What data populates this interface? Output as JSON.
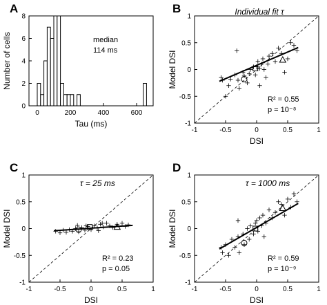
{
  "chart_data": [
    {
      "panel": "A",
      "type": "histogram",
      "xlabel": "Tau (ms)",
      "ylabel": "Number of cells",
      "xlim": [
        -50,
        700
      ],
      "ylim": [
        0,
        8
      ],
      "xticks": [
        0,
        200,
        400,
        600
      ],
      "yticks": [
        0,
        2,
        4,
        6,
        8
      ],
      "bin_width": 20,
      "bins": [
        {
          "x0": 0,
          "count": 2
        },
        {
          "x0": 20,
          "count": 1
        },
        {
          "x0": 40,
          "count": 4
        },
        {
          "x0": 60,
          "count": 7
        },
        {
          "x0": 80,
          "count": 6
        },
        {
          "x0": 100,
          "count": 8
        },
        {
          "x0": 120,
          "count": 8
        },
        {
          "x0": 140,
          "count": 2
        },
        {
          "x0": 160,
          "count": 1
        },
        {
          "x0": 180,
          "count": 1
        },
        {
          "x0": 200,
          "count": 1
        },
        {
          "x0": 240,
          "count": 1
        },
        {
          "x0": 640,
          "count": 2
        }
      ],
      "annotation_line1": "median",
      "annotation_line2": "114 ms"
    },
    {
      "panel": "B",
      "type": "scatter",
      "title": "Individual fit τ",
      "xlabel": "DSI",
      "ylabel": "Model DSI",
      "xlim": [
        -1,
        1
      ],
      "ylim": [
        -1,
        1
      ],
      "xticks": [
        -1,
        -0.5,
        0,
        0.5,
        1
      ],
      "yticks": [
        -1,
        -0.5,
        0,
        0.5,
        1
      ],
      "stat1_text": "R² = 0.55",
      "stat2_text": "p = 10⁻⁸",
      "fit_line": [
        [
          -0.6,
          -0.22
        ],
        [
          0.67,
          0.41
        ]
      ],
      "points": [
        [
          -0.57,
          -0.15
        ],
        [
          -0.55,
          -0.2
        ],
        [
          -0.5,
          -0.5
        ],
        [
          -0.45,
          -0.3
        ],
        [
          -0.42,
          -0.18
        ],
        [
          -0.35,
          -0.1
        ],
        [
          -0.3,
          -0.2
        ],
        [
          -0.28,
          -0.35
        ],
        [
          -0.22,
          -0.05
        ],
        [
          -0.2,
          -0.12
        ],
        [
          -0.15,
          -0.25
        ],
        [
          -0.12,
          -0.08
        ],
        [
          -0.1,
          0.0
        ],
        [
          -0.05,
          0.05
        ],
        [
          -0.02,
          -0.1
        ],
        [
          0.0,
          0.05
        ],
        [
          0.02,
          0.15
        ],
        [
          0.05,
          0.02
        ],
        [
          0.08,
          0.1
        ],
        [
          0.1,
          0.2
        ],
        [
          0.12,
          0.0
        ],
        [
          0.15,
          -0.15
        ],
        [
          0.18,
          0.1
        ],
        [
          0.2,
          0.25
        ],
        [
          0.25,
          0.3
        ],
        [
          0.3,
          0.15
        ],
        [
          0.35,
          0.4
        ],
        [
          0.4,
          0.3
        ],
        [
          0.45,
          -0.05
        ],
        [
          0.5,
          0.2
        ],
        [
          0.55,
          0.5
        ],
        [
          0.6,
          0.45
        ],
        [
          0.65,
          0.35
        ],
        [
          -0.32,
          0.35
        ],
        [
          0.05,
          -0.3
        ]
      ],
      "circle": [
        -0.2,
        -0.18
      ],
      "square": [
        -0.02,
        0.02
      ],
      "triangle": [
        0.42,
        0.18
      ]
    },
    {
      "panel": "C",
      "type": "scatter",
      "title": "τ = 25 ms",
      "xlabel": "DSI",
      "ylabel": "Model DSI",
      "xlim": [
        -1,
        1
      ],
      "ylim": [
        -1,
        1
      ],
      "xticks": [
        -1,
        -0.5,
        0,
        0.5,
        1
      ],
      "yticks": [
        -1,
        -0.5,
        0,
        0.5,
        1
      ],
      "stat1_text": "R² = 0.23",
      "stat2_text": "p = 0.05",
      "fit_line": [
        [
          -0.6,
          -0.04
        ],
        [
          0.67,
          0.06
        ]
      ],
      "points": [
        [
          -0.57,
          -0.05
        ],
        [
          -0.5,
          -0.08
        ],
        [
          -0.45,
          -0.03
        ],
        [
          -0.4,
          -0.07
        ],
        [
          -0.35,
          -0.02
        ],
        [
          -0.3,
          -0.05
        ],
        [
          -0.25,
          0.0
        ],
        [
          -0.2,
          -0.06
        ],
        [
          -0.15,
          0.02
        ],
        [
          -0.1,
          -0.03
        ],
        [
          -0.05,
          0.04
        ],
        [
          0.0,
          -0.02
        ],
        [
          0.05,
          0.05
        ],
        [
          0.1,
          0.01
        ],
        [
          0.15,
          0.08
        ],
        [
          0.2,
          0.03
        ],
        [
          0.25,
          0.1
        ],
        [
          0.3,
          0.05
        ],
        [
          0.35,
          0.02
        ],
        [
          0.42,
          0.08
        ],
        [
          0.5,
          0.1
        ],
        [
          0.55,
          0.04
        ],
        [
          0.6,
          0.07
        ],
        [
          -0.08,
          0.05
        ],
        [
          0.12,
          -0.04
        ],
        [
          -0.22,
          0.06
        ],
        [
          0.18,
          0.1
        ]
      ],
      "circle": [
        -0.2,
        -0.02
      ],
      "square": [
        -0.02,
        0.03
      ],
      "triangle": [
        0.42,
        0.03
      ]
    },
    {
      "panel": "D",
      "type": "scatter",
      "title": "τ = 1000 ms",
      "xlabel": "DSI",
      "ylabel": "Model DSI",
      "xlim": [
        -1,
        1
      ],
      "ylim": [
        -1,
        1
      ],
      "xticks": [
        -1,
        -0.5,
        0,
        0.5,
        1
      ],
      "yticks": [
        -1,
        -0.5,
        0,
        0.5,
        1
      ],
      "stat1_text": "R² = 0.59",
      "stat2_text": "p = 10⁻⁹",
      "fit_line": [
        [
          -0.6,
          -0.38
        ],
        [
          0.67,
          0.47
        ]
      ],
      "points": [
        [
          -0.57,
          -0.35
        ],
        [
          -0.55,
          -0.45
        ],
        [
          -0.5,
          -0.3
        ],
        [
          -0.45,
          -0.5
        ],
        [
          -0.4,
          -0.2
        ],
        [
          -0.35,
          -0.35
        ],
        [
          -0.3,
          -0.15
        ],
        [
          -0.28,
          -0.45
        ],
        [
          -0.22,
          -0.1
        ],
        [
          -0.2,
          -0.3
        ],
        [
          -0.15,
          0.0
        ],
        [
          -0.12,
          -0.2
        ],
        [
          -0.1,
          0.05
        ],
        [
          -0.05,
          -0.1
        ],
        [
          -0.02,
          0.1
        ],
        [
          0.0,
          0.15
        ],
        [
          0.02,
          -0.05
        ],
        [
          0.05,
          0.2
        ],
        [
          0.08,
          0.05
        ],
        [
          0.1,
          0.25
        ],
        [
          0.12,
          -0.15
        ],
        [
          0.15,
          0.1
        ],
        [
          0.2,
          0.35
        ],
        [
          0.25,
          0.2
        ],
        [
          0.3,
          0.3
        ],
        [
          0.35,
          0.5
        ],
        [
          0.4,
          0.45
        ],
        [
          0.45,
          0.25
        ],
        [
          0.5,
          0.55
        ],
        [
          0.55,
          0.4
        ],
        [
          0.6,
          0.65
        ],
        [
          0.65,
          0.5
        ],
        [
          -0.3,
          0.15
        ]
      ],
      "circle": [
        -0.2,
        -0.27
      ],
      "square": [
        -0.02,
        0.0
      ],
      "triangle": [
        0.42,
        0.38
      ]
    }
  ]
}
